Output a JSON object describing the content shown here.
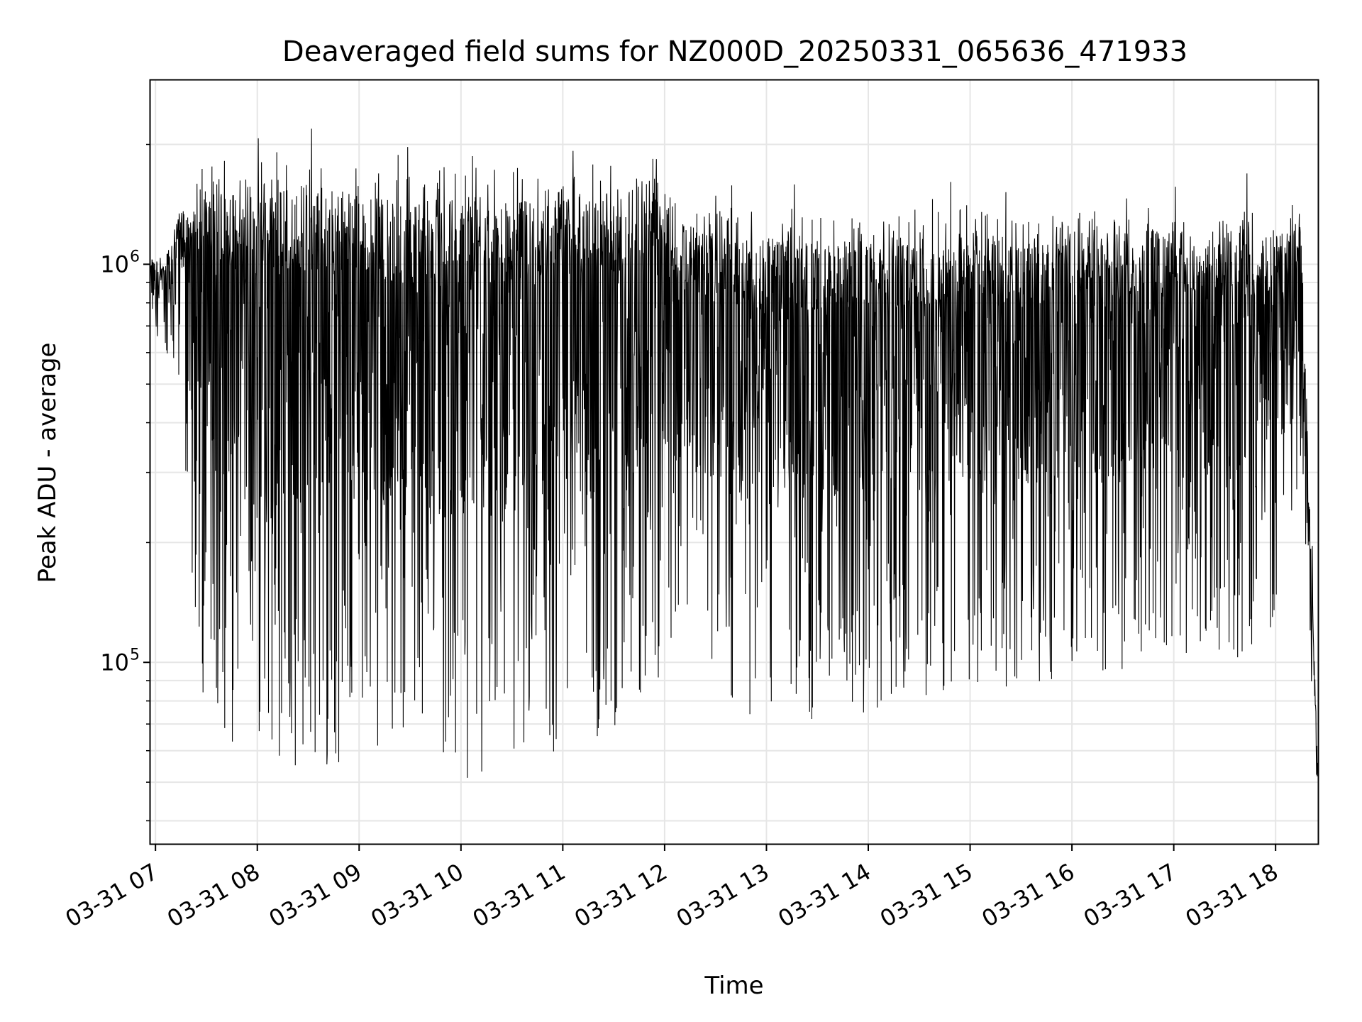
{
  "chart_data": {
    "type": "line",
    "title": "Deaveraged field sums for NZ000D_20250331_065636_471933",
    "xlabel": "Time",
    "ylabel": "Peak ADU - average",
    "yscale": "log",
    "ylim": [
      35000,
      2900000
    ],
    "xlim": [
      "2025-03-31 06:57",
      "2025-03-31 18:25"
    ],
    "grid": true,
    "x_ticks": [
      "03-31 07",
      "03-31 08",
      "03-31 09",
      "03-31 10",
      "03-31 11",
      "03-31 12",
      "03-31 13",
      "03-31 14",
      "03-31 15",
      "03-31 16",
      "03-31 17",
      "03-31 18"
    ],
    "y_ticks": [
      {
        "value": 100000,
        "base": "10",
        "exp": "5"
      },
      {
        "value": 1000000,
        "base": "10",
        "exp": "6"
      }
    ],
    "line_color": "#000000",
    "series": [
      {
        "x": [
          "2025-03-31 06:57",
          "2025-03-31 07:05",
          "2025-03-31 07:15",
          "2025-03-31 07:20",
          "2025-03-31 07:25",
          "2025-03-31 07:35",
          "2025-03-31 07:45",
          "2025-03-31 08:00",
          "2025-03-31 08:15",
          "2025-03-31 08:30",
          "2025-03-31 09:00",
          "2025-03-31 09:30",
          "2025-03-31 10:00",
          "2025-03-31 10:30",
          "2025-03-31 11:00",
          "2025-03-31 11:30",
          "2025-03-31 11:55",
          "2025-03-31 12:05",
          "2025-03-31 12:30",
          "2025-03-31 13:00",
          "2025-03-31 13:30",
          "2025-03-31 14:00",
          "2025-03-31 14:30",
          "2025-03-31 15:00",
          "2025-03-31 15:30",
          "2025-03-31 16:00",
          "2025-03-31 16:30",
          "2025-03-31 17:00",
          "2025-03-31 17:30",
          "2025-03-31 18:00",
          "2025-03-31 18:15",
          "2025-03-31 18:25"
        ],
        "y_high": [
          1050000,
          1000000,
          1400000,
          1300000,
          1500000,
          1600000,
          1500000,
          1500000,
          1550000,
          1600000,
          1500000,
          1450000,
          1500000,
          1450000,
          1550000,
          1500000,
          1700000,
          1300000,
          1200000,
          1150000,
          1150000,
          1200000,
          1150000,
          1250000,
          1150000,
          1200000,
          1200000,
          1250000,
          1200000,
          1200000,
          1300000,
          50000
        ],
        "y_low": [
          650000,
          600000,
          500000,
          200000,
          90000,
          70000,
          60000,
          55000,
          55000,
          55000,
          55000,
          55000,
          50000,
          50000,
          60000,
          65000,
          90000,
          100000,
          80000,
          70000,
          70000,
          75000,
          80000,
          85000,
          85000,
          90000,
          95000,
          100000,
          100000,
          110000,
          300000,
          40000
        ]
      }
    ]
  }
}
